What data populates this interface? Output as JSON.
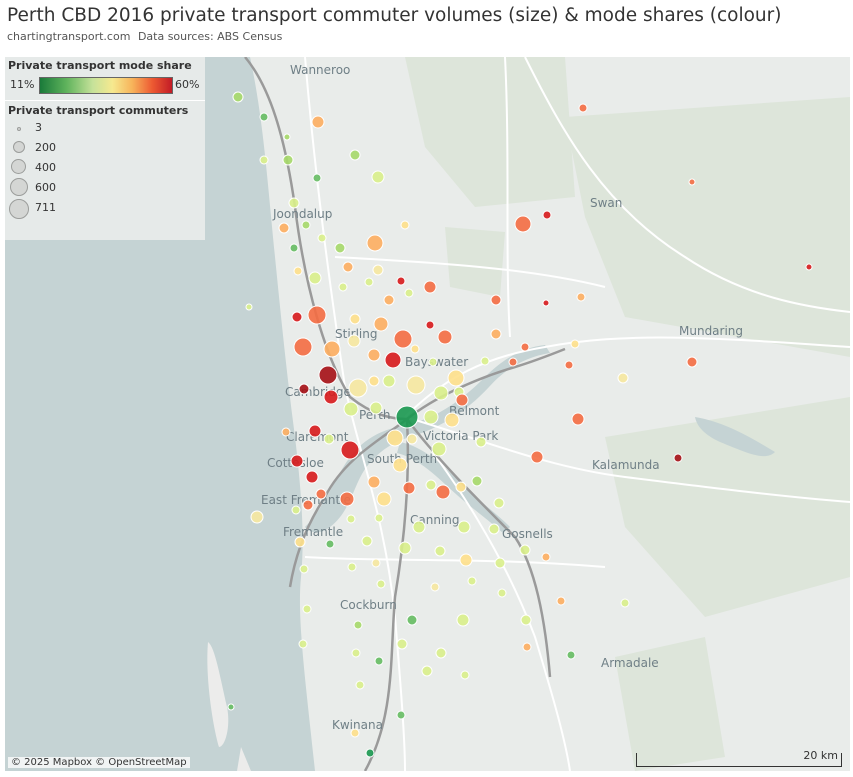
{
  "header": {
    "title": "Perth CBD 2016 private transport commuter volumes (size) & mode shares (colour)",
    "source_site": "chartingtransport.com",
    "source_note": "Data sources: ABS Census"
  },
  "legend": {
    "color_title": "Private transport mode share",
    "color_min": "11%",
    "color_max": "60%",
    "size_title": "Private transport commuters",
    "size_items": [
      "3",
      "200",
      "400",
      "600",
      "711"
    ]
  },
  "places": [
    "Wanneroo",
    "Swan",
    "Joondalup",
    "Mundaring",
    "Stirling",
    "Bayswater",
    "Cambridge",
    "Perth",
    "Belmont",
    "Claremont",
    "Victoria Park",
    "Cottesloe",
    "South Perth",
    "Kalamunda",
    "East Fremantle",
    "Canning",
    "Fremantle",
    "Gosnells",
    "Cockburn",
    "Armadale",
    "Kwinana"
  ],
  "map": {
    "attribution": "© 2025 Mapbox © OpenStreetMap",
    "scale_label": "20 km",
    "colors": {
      "water": "#c5d3d4",
      "land": "#ececeb",
      "park": "#dde5da",
      "road": "#ffffff",
      "rail": "#9a9a9a"
    }
  }
}
